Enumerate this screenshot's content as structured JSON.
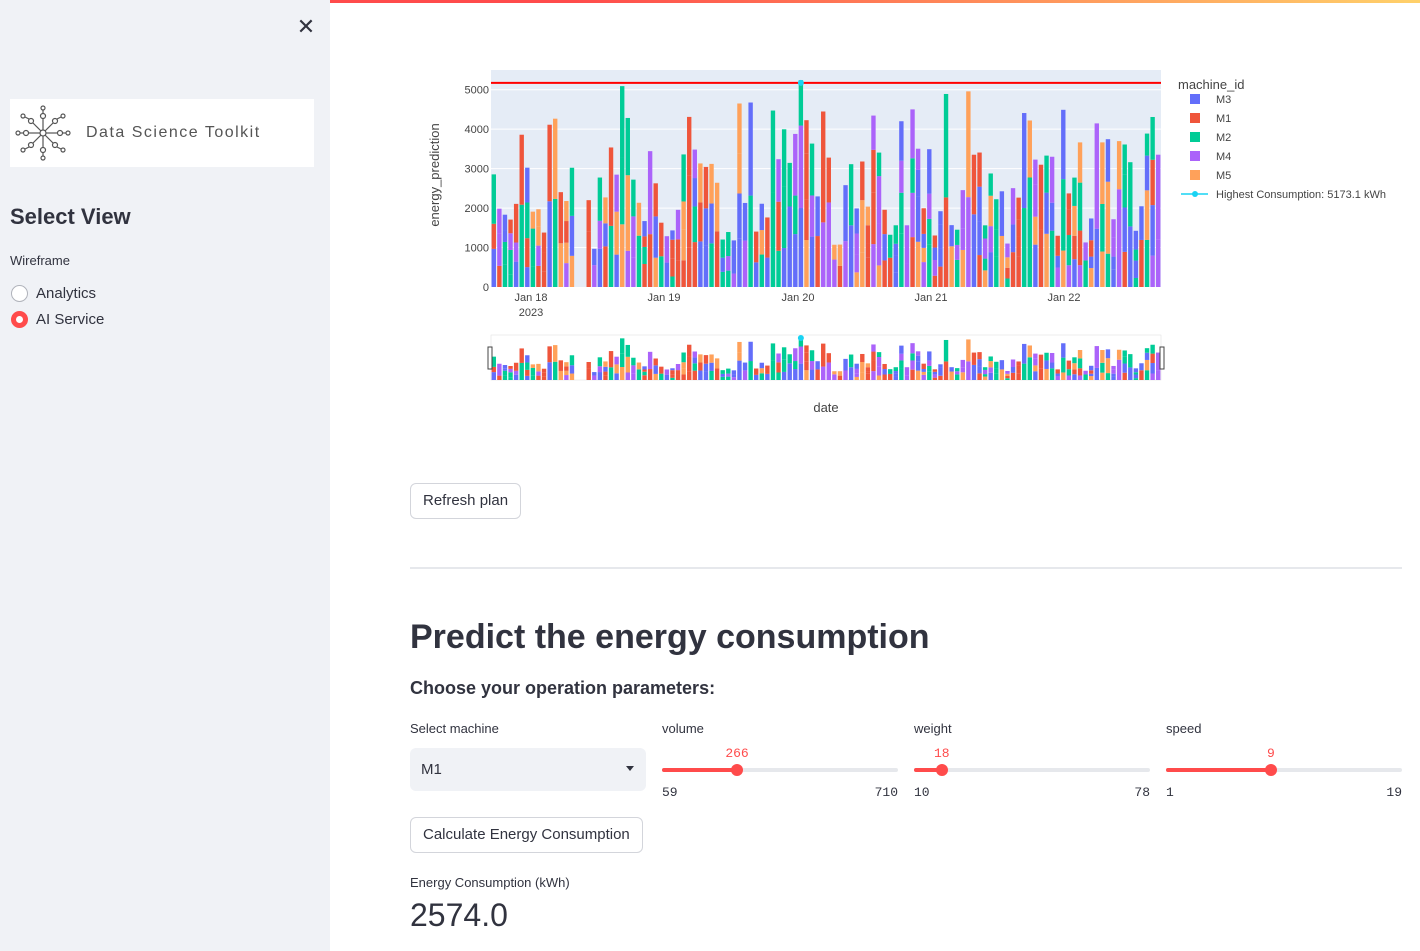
{
  "sidebar": {
    "logo_text": "Data Science Toolkit",
    "select_view": "Select View",
    "radio_group_label": "Wireframe",
    "options": [
      {
        "label": "Analytics",
        "selected": false
      },
      {
        "label": "AI Service",
        "selected": true
      }
    ]
  },
  "chart_data": {
    "type": "bar",
    "barmode": "stack",
    "xlabel": "date",
    "ylabel": "energy_prediction",
    "ylim": [
      0,
      5500
    ],
    "y_ticks": [
      "0",
      "1000",
      "2000",
      "3000",
      "4000",
      "5000"
    ],
    "x_ticks": [
      "Jan 18",
      "Jan 19",
      "Jan 20",
      "Jan 21",
      "Jan 22"
    ],
    "x_tick_year": "2023",
    "legend_title": "machine_id",
    "legend_position": "right",
    "series": [
      {
        "name": "M3",
        "color": "#636efa"
      },
      {
        "name": "M1",
        "color": "#ef553b"
      },
      {
        "name": "M2",
        "color": "#00cc96"
      },
      {
        "name": "M4",
        "color": "#ab63fa"
      },
      {
        "name": "M5",
        "color": "#ffa15a"
      }
    ],
    "highlight_line": {
      "name": "Highest Consumption: 5173.1 kWh",
      "value": 5173.1,
      "color": "#ff0000"
    },
    "bar_count": 120,
    "rangeslider": true
  },
  "buttons": {
    "refresh": "Refresh plan",
    "calculate": "Calculate Energy Consumption"
  },
  "predict": {
    "title": "Predict the energy consumption",
    "subtitle": "Choose your operation parameters:",
    "machine_label": "Select machine",
    "machine_value": "M1",
    "sliders": [
      {
        "label": "volume",
        "value": 266,
        "min": 59,
        "max": 710
      },
      {
        "label": "weight",
        "value": 18,
        "min": 10,
        "max": 78
      },
      {
        "label": "speed",
        "value": 9,
        "min": 1,
        "max": 19
      }
    ],
    "result_label": "Energy Consumption (kWh)",
    "result_value": "2574.0"
  }
}
